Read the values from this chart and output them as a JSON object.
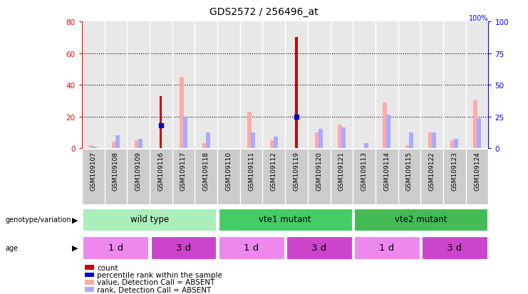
{
  "title": "GDS2572 / 256496_at",
  "samples": [
    "GSM109107",
    "GSM109108",
    "GSM109109",
    "GSM109116",
    "GSM109117",
    "GSM109118",
    "GSM109110",
    "GSM109111",
    "GSM109112",
    "GSM109119",
    "GSM109120",
    "GSM109121",
    "GSM109113",
    "GSM109114",
    "GSM109115",
    "GSM109122",
    "GSM109123",
    "GSM109124"
  ],
  "count_values": [
    0,
    0,
    0,
    33,
    0,
    0,
    0,
    0,
    0,
    70,
    0,
    0,
    0,
    0,
    0,
    0,
    0,
    0
  ],
  "percentile_values": [
    0,
    0,
    0,
    18,
    0,
    0,
    0,
    0,
    0,
    25,
    0,
    0,
    0,
    0,
    0,
    0,
    0,
    0
  ],
  "absent_value": [
    2,
    4,
    5,
    0,
    45,
    3,
    0,
    23,
    5,
    0,
    10,
    15,
    0,
    29,
    2,
    10,
    5,
    30
  ],
  "absent_rank": [
    1,
    8,
    6,
    0,
    20,
    10,
    0,
    10,
    7,
    0,
    12,
    13,
    3,
    21,
    10,
    10,
    6,
    19
  ],
  "ylim_left": [
    0,
    80
  ],
  "ylim_right": [
    0,
    100
  ],
  "yticks_left": [
    0,
    20,
    40,
    60,
    80
  ],
  "yticks_right": [
    0,
    25,
    50,
    75,
    100
  ],
  "count_color": "#cc0000",
  "percentile_color": "#0000cc",
  "absent_value_color": "#ffaaaa",
  "absent_rank_color": "#aaaaff",
  "col_bg_color": "#cccccc",
  "plot_bg_color": "#ffffff",
  "genotype_groups": [
    {
      "label": "wild type",
      "start": 0,
      "end": 6,
      "color": "#aaeebb"
    },
    {
      "label": "vte1 mutant",
      "start": 6,
      "end": 12,
      "color": "#44cc66"
    },
    {
      "label": "vte2 mutant",
      "start": 12,
      "end": 18,
      "color": "#44bb55"
    }
  ],
  "age_groups": [
    {
      "label": "1 d",
      "start": 0,
      "end": 3,
      "color": "#ee88ee"
    },
    {
      "label": "3 d",
      "start": 3,
      "end": 6,
      "color": "#cc44cc"
    },
    {
      "label": "1 d",
      "start": 6,
      "end": 9,
      "color": "#ee88ee"
    },
    {
      "label": "3 d",
      "start": 9,
      "end": 12,
      "color": "#cc44cc"
    },
    {
      "label": "1 d",
      "start": 12,
      "end": 15,
      "color": "#ee88ee"
    },
    {
      "label": "3 d",
      "start": 15,
      "end": 18,
      "color": "#cc44cc"
    }
  ],
  "legend_items": [
    {
      "label": "count",
      "color": "#cc0000"
    },
    {
      "label": "percentile rank within the sample",
      "color": "#0000cc"
    },
    {
      "label": "value, Detection Call = ABSENT",
      "color": "#ffaaaa"
    },
    {
      "label": "rank, Detection Call = ABSENT",
      "color": "#aaaaff"
    }
  ],
  "figsize": [
    7.41,
    4.14
  ],
  "dpi": 100
}
